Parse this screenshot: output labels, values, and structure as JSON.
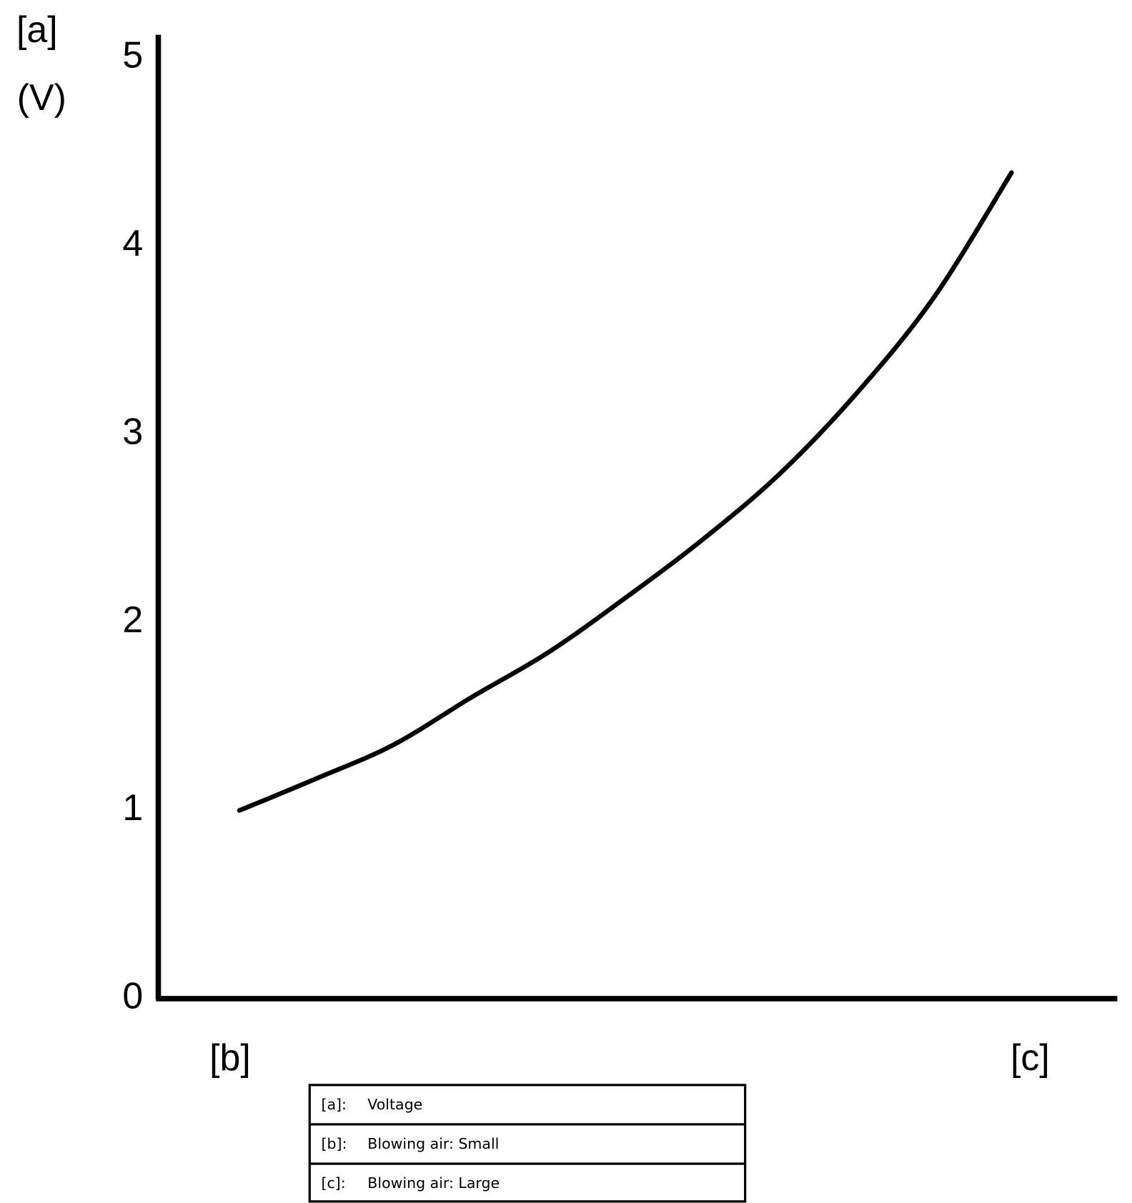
{
  "chart_data": {
    "type": "line",
    "y_label_top": "[a]",
    "y_label_unit": "(V)",
    "categories": [
      "[b]",
      null,
      null,
      null,
      null,
      null,
      null,
      null,
      null,
      null,
      "[c]"
    ],
    "values": [
      1.0,
      1.17,
      1.35,
      1.6,
      1.84,
      2.13,
      2.44,
      2.79,
      3.22,
      3.73,
      4.39
    ],
    "color": "#000000",
    "ylim": [
      0,
      5
    ],
    "yticks": [
      0,
      1,
      2,
      3,
      4,
      5
    ],
    "grid": false
  },
  "legend_table": {
    "rows": [
      [
        "[a]:",
        "Voltage"
      ],
      [
        "[b]:",
        "Blowing air: Small"
      ],
      [
        "[c]:",
        "Blowing air: Large"
      ]
    ]
  }
}
